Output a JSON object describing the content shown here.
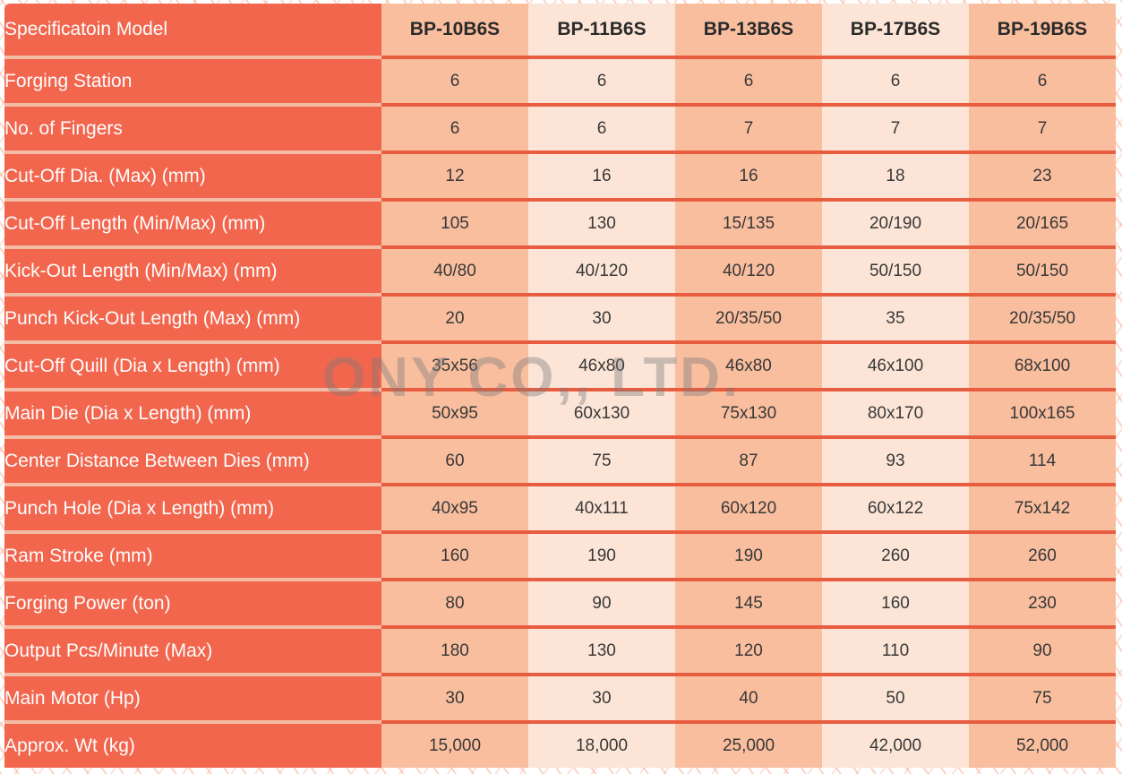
{
  "page": {
    "watermark": "ONY CO,, LTD."
  },
  "colors": {
    "label_column_bg": "#F2664E",
    "label_text": "#FDFDFD",
    "column_dark_bg": "#F9BE9E",
    "column_light_bg": "#FCE5D6",
    "divider_on_label": "#F3BCA5",
    "divider_on_data": "#E85C40",
    "header_text": "#2A2A2A",
    "value_text": "#383838",
    "watermark_text": "rgba(122,122,122,0.40)"
  },
  "table": {
    "header": {
      "label": "Specificatoin Model",
      "models": [
        "BP-10B6S",
        "BP-11B6S",
        "BP-13B6S",
        "BP-17B6S",
        "BP-19B6S"
      ]
    },
    "rows": [
      {
        "label": "Forging Station",
        "values": [
          "6",
          "6",
          "6",
          "6",
          "6"
        ]
      },
      {
        "label": "No. of Fingers",
        "values": [
          "6",
          "6",
          "7",
          "7",
          "7"
        ]
      },
      {
        "label": "Cut-Off Dia. (Max) (mm)",
        "values": [
          "12",
          "16",
          "16",
          "18",
          "23"
        ]
      },
      {
        "label": "Cut-Off Length (Min/Max) (mm)",
        "values": [
          "105",
          "130",
          "15/135",
          "20/190",
          "20/165"
        ]
      },
      {
        "label": "Kick-Out Length (Min/Max) (mm)",
        "values": [
          "40/80",
          "40/120",
          "40/120",
          "50/150",
          "50/150"
        ]
      },
      {
        "label": "Punch Kick-Out Length (Max) (mm)",
        "values": [
          "20",
          "30",
          "20/35/50",
          "35",
          "20/35/50"
        ]
      },
      {
        "label": "Cut-Off Quill (Dia x Length) (mm)",
        "values": [
          "35x56",
          "46x80",
          "46x80",
          "46x100",
          "68x100"
        ]
      },
      {
        "label": "Main Die (Dia x Length) (mm)",
        "values": [
          "50x95",
          "60x130",
          "75x130",
          "80x170",
          "100x165"
        ]
      },
      {
        "label": "Center Distance Between Dies (mm)",
        "values": [
          "60",
          "75",
          "87",
          "93",
          "114"
        ]
      },
      {
        "label": "Punch Hole (Dia x Length) (mm)",
        "values": [
          "40x95",
          "40x111",
          "60x120",
          "60x122",
          "75x142"
        ]
      },
      {
        "label": "Ram Stroke (mm)",
        "values": [
          "160",
          "190",
          "190",
          "260",
          "260"
        ]
      },
      {
        "label": "Forging Power (ton)",
        "values": [
          "80",
          "90",
          "145",
          "160",
          "230"
        ]
      },
      {
        "label": "Output Pcs/Minute (Max)",
        "values": [
          "180",
          "130",
          "120",
          "110",
          "90"
        ]
      },
      {
        "label": "Main Motor (Hp)",
        "values": [
          "30",
          "30",
          "40",
          "50",
          "75"
        ]
      },
      {
        "label": "Approx. Wt (kg)",
        "values": [
          "15,000",
          "18,000",
          "25,000",
          "42,000",
          "52,000"
        ]
      }
    ]
  }
}
